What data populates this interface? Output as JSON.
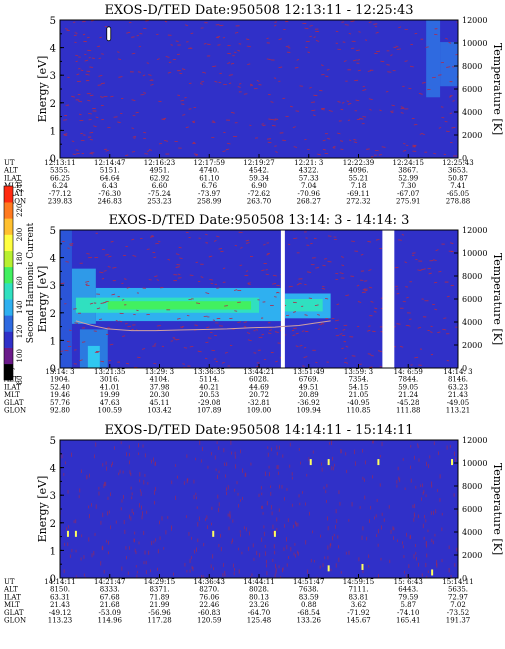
{
  "chart_data": [
    {
      "type": "heatmap",
      "title": "EXOS-D/TED   Date:950508   12:13:11 - 12:25:43",
      "ylabel": "Energy [eV]",
      "y2label": "Temperature [K]",
      "ylim": [
        0,
        5
      ],
      "y2lim": [
        0,
        12000
      ],
      "yticks": [
        "0",
        "1",
        "2",
        "3",
        "4",
        "5"
      ],
      "y2ticks": [
        "0",
        "2000",
        "4000",
        "6000",
        "8000",
        "10000",
        "12000"
      ],
      "background_color": "#3030c8",
      "noise_color": "#b02a4a",
      "bands": [
        {
          "x0": 0.0,
          "x1": 0.92,
          "ymin": 0,
          "ymax": 5,
          "color": "#3030c8"
        },
        {
          "x0": 0.92,
          "x1": 0.955,
          "ymin": 2.2,
          "ymax": 5,
          "color": "#2f6ae0"
        },
        {
          "x0": 0.955,
          "x1": 1.0,
          "ymin": 2.6,
          "ymax": 4.2,
          "color": "#2f6ae0"
        }
      ],
      "spots": [
        {
          "x": 0.12,
          "y": 4.5,
          "color": "#ffffff"
        }
      ],
      "eph_rows": [
        "UT",
        "ALT",
        "ILAT",
        "MLT",
        "GLAT",
        "GLON"
      ],
      "eph": [
        [
          "12:13:11",
          "12:14:47",
          "12:16:23",
          "12:17:59",
          "12:19:27",
          "12:21: 3",
          "12:22:39",
          "12:24:15",
          "12:25:43"
        ],
        [
          "5355.",
          "5151.",
          "4951.",
          "4740.",
          "4542.",
          "4322.",
          "4096.",
          "3867.",
          "3653."
        ],
        [
          "66.25",
          "64.64",
          "62.92",
          "61.10",
          "59.34",
          "57.33",
          "55.21",
          "52.99",
          "50.87"
        ],
        [
          "6.24",
          "6.43",
          "6.60",
          "6.76",
          "6.90",
          "7.04",
          "7.18",
          "7.30",
          "7.41"
        ],
        [
          "-77.12",
          "-76.30",
          "-75.24",
          "-73.97",
          "-72.62",
          "-70.96",
          "-69.11",
          "-67.07",
          "-65.05"
        ],
        [
          "239.83",
          "246.83",
          "253.23",
          "258.99",
          "263.70",
          "268.27",
          "272.32",
          "275.91",
          "278.88"
        ]
      ]
    },
    {
      "type": "heatmap",
      "title": "EXOS-D/TED   Date:950508   13:14: 3 - 14:14: 3",
      "ylabel": "Energy [eV]",
      "y2label": "Temperature [K]",
      "ylim": [
        0,
        5
      ],
      "y2lim": [
        0,
        12000
      ],
      "yticks": [
        "0",
        "1",
        "2",
        "3",
        "4",
        "5"
      ],
      "y2ticks": [
        "0",
        "2000",
        "4000",
        "6000",
        "8000",
        "10000",
        "12000"
      ],
      "background_color": "#3030c8",
      "noise_color": "#b02a4a",
      "gaps": [
        [
          0.555,
          0.565
        ],
        [
          0.81,
          0.84
        ]
      ],
      "bands": [
        {
          "x0": 0.0,
          "x1": 0.03,
          "ymin": 0,
          "ymax": 5,
          "color": "#2b55d8"
        },
        {
          "x0": 0.03,
          "x1": 0.09,
          "ymin": 1.6,
          "ymax": 3.6,
          "color": "#2f9ae8"
        },
        {
          "x0": 0.09,
          "x1": 0.555,
          "ymin": 1.7,
          "ymax": 2.9,
          "color": "#2fb0f0"
        },
        {
          "x0": 0.565,
          "x1": 0.68,
          "ymin": 1.8,
          "ymax": 2.7,
          "color": "#2fb0f0"
        },
        {
          "x0": 0.04,
          "x1": 0.5,
          "ymin": 2.0,
          "ymax": 2.55,
          "color": "#30e0c0"
        },
        {
          "x0": 0.12,
          "x1": 0.48,
          "ymin": 2.12,
          "ymax": 2.42,
          "color": "#42f060"
        },
        {
          "x0": 0.565,
          "x1": 0.66,
          "ymin": 2.05,
          "ymax": 2.5,
          "color": "#30e0c0"
        },
        {
          "x0": 0.05,
          "x1": 0.12,
          "ymin": 0,
          "ymax": 1.4,
          "color": "#2b7ae0"
        },
        {
          "x0": 0.07,
          "x1": 0.1,
          "ymin": 0,
          "ymax": 0.8,
          "color": "#30c8f0"
        }
      ],
      "temperature_trace": {
        "color": "#d0a0a0",
        "x": [
          0.04,
          0.08,
          0.12,
          0.18,
          0.24,
          0.3,
          0.36,
          0.42,
          0.48,
          0.54,
          0.555,
          0.6,
          0.64,
          0.68
        ],
        "y": [
          4100,
          3700,
          3400,
          3250,
          3250,
          3300,
          3350,
          3400,
          3500,
          3550,
          3600,
          3700,
          3900,
          4100
        ]
      },
      "colorbar": {
        "label": "Second Harmonic Current",
        "ticks": [
          "80",
          "100",
          "120",
          "140",
          "160",
          "180",
          "200",
          "220",
          "240"
        ],
        "colors": [
          "#000000",
          "#6a1a8a",
          "#3030c8",
          "#2f6ae0",
          "#2fb0f0",
          "#30e0c0",
          "#42f060",
          "#b8f030",
          "#ffff40",
          "#ffc030",
          "#ff7a20",
          "#ff2a10"
        ]
      },
      "eph_rows": [
        "UT",
        "ALT",
        "ILAT",
        "MLT",
        "GLAT",
        "GLON"
      ],
      "eph": [
        [
          "13:14: 3",
          "13:21:35",
          "13:29: 3",
          "13:36:35",
          "13:44:21",
          "13:51:49",
          "13:59: 3",
          "14: 6:59",
          "14:14: 3"
        ],
        [
          "1904.",
          "3016.",
          "4104.",
          "5114.",
          "6028.",
          "6769.",
          "7354.",
          "7844.",
          "8146."
        ],
        [
          "52.40",
          "41.01",
          "37.98",
          "40.21",
          "44.69",
          "49.51",
          "54.15",
          "59.05",
          "63.23"
        ],
        [
          "19.46",
          "19.99",
          "20.30",
          "20.53",
          "20.72",
          "20.89",
          "21.05",
          "21.24",
          "21.43"
        ],
        [
          "57.76",
          "47.63",
          "45.11",
          "-29.08",
          "-32.81",
          "-36.92",
          "-40.95",
          "-45.28",
          "-49.05"
        ],
        [
          "92.80",
          "100.59",
          "103.42",
          "107.89",
          "109.00",
          "109.94",
          "110.85",
          "111.88",
          "113.21"
        ]
      ]
    },
    {
      "type": "heatmap",
      "title": "EXOS-D/TED   Date:950508   14:14:11 - 15:14:11",
      "ylabel": "Energy [eV]",
      "y2label": "Temperature [K]",
      "ylim": [
        0,
        5
      ],
      "y2lim": [
        0,
        12000
      ],
      "yticks": [
        "0",
        "1",
        "2",
        "3",
        "4",
        "5"
      ],
      "y2ticks": [
        "0",
        "2000",
        "4000",
        "6000",
        "8000",
        "10000",
        "12000"
      ],
      "background_color": "#3030c8",
      "noise_color": "#8a2a6a",
      "bands": [],
      "spots": [
        {
          "x": 0.02,
          "y": 1.6,
          "color": "#ffff60"
        },
        {
          "x": 0.04,
          "y": 1.6,
          "color": "#ffff60"
        },
        {
          "x": 0.63,
          "y": 4.2,
          "color": "#ffff60"
        },
        {
          "x": 0.675,
          "y": 4.2,
          "color": "#ffff60"
        },
        {
          "x": 0.8,
          "y": 4.2,
          "color": "#ffff60"
        },
        {
          "x": 0.985,
          "y": 4.2,
          "color": "#ffff60"
        },
        {
          "x": 0.385,
          "y": 1.6,
          "color": "#ffff60"
        },
        {
          "x": 0.54,
          "y": 1.6,
          "color": "#ffff60"
        },
        {
          "x": 0.675,
          "y": 0.35,
          "color": "#ffff60"
        },
        {
          "x": 0.76,
          "y": 0.4,
          "color": "#ffff60"
        },
        {
          "x": 0.935,
          "y": 0.2,
          "color": "#ffff60"
        }
      ],
      "eph_rows": [
        "UT",
        "ALT",
        "ILAT",
        "MLT",
        "GLAT",
        "GLON"
      ],
      "eph": [
        [
          "14:14:11",
          "14:21:47",
          "14:29:15",
          "14:36:43",
          "14:44:11",
          "14:51:47",
          "14:59:15",
          "15: 6:43",
          "15:14:11"
        ],
        [
          "8150.",
          "8333.",
          "8371.",
          "8270.",
          "8028.",
          "7638.",
          "7111.",
          "6443.",
          "5635."
        ],
        [
          "63.31",
          "67.68",
          "71.89",
          "76.06",
          "80.13",
          "83.59",
          "83.81",
          "79.59",
          "72.97"
        ],
        [
          "21.43",
          "21.68",
          "21.99",
          "22.46",
          "23.26",
          "0.88",
          "3.62",
          "5.87",
          "7.02"
        ],
        [
          "-49.12",
          "-53.09",
          "-56.96",
          "-60.83",
          "-64.70",
          "-68.54",
          "-71.92",
          "-74.10",
          "-73.52"
        ],
        [
          "113.23",
          "114.96",
          "117.28",
          "120.59",
          "125.48",
          "133.26",
          "145.67",
          "165.41",
          "191.37"
        ]
      ]
    }
  ]
}
